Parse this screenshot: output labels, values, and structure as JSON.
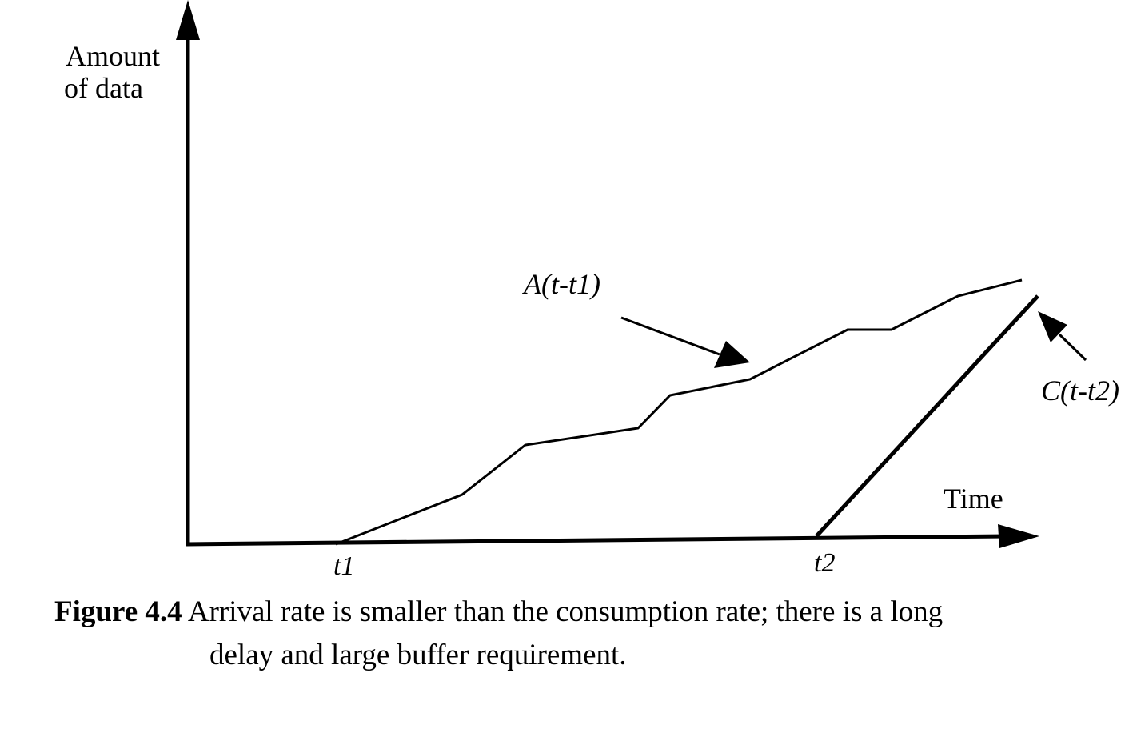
{
  "axes": {
    "y_label_line1": "Amount",
    "y_label_line2": "of data",
    "x_label": "Time"
  },
  "ticks": {
    "t1": "t1",
    "t2": "t2"
  },
  "curves": {
    "arrival_label": "A(t-t1)",
    "consumption_label": "C(t-t2)"
  },
  "caption": {
    "figure_number": "Figure 4.4",
    "text_line1": "Arrival rate is smaller than the consumption rate; there is a long",
    "text_line2": "delay and large buffer requirement."
  }
}
